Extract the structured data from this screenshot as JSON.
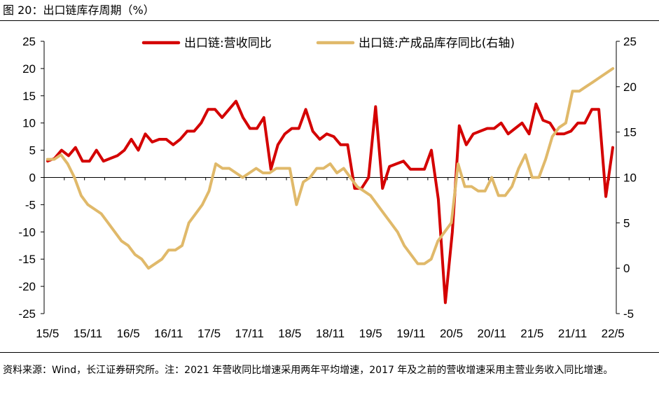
{
  "figure_title": "图 20：出口链库存周期（%）",
  "source_note": "资料来源：Wind，长江证券研究所。注：2021 年营收同比增速采用两年平均增速，2017 年及之前的营收增速采用主营业务收入同比增速。",
  "chart_data": {
    "type": "line",
    "x_tick_labels": [
      "15/5",
      "15/11",
      "16/5",
      "16/11",
      "17/5",
      "17/11",
      "18/5",
      "18/11",
      "19/5",
      "19/11",
      "20/5",
      "20/11",
      "21/5",
      "21/11",
      "22/5"
    ],
    "y_left": {
      "lim": [
        -25,
        25
      ],
      "ticks": [
        25,
        20,
        15,
        10,
        5,
        0,
        -5,
        -10,
        -15,
        -20,
        -25
      ]
    },
    "y_right": {
      "lim": [
        -5,
        25
      ],
      "ticks": [
        25,
        20,
        15,
        10,
        5,
        0,
        -5
      ]
    },
    "legend_placement": "top",
    "colors": {
      "revenue": "#d40000",
      "inventory": "#e0b96a"
    },
    "series": [
      {
        "name": "出口链:营收同比",
        "axis": "left",
        "values": [
          3.0,
          3.5,
          5.0,
          4.0,
          5.5,
          3.0,
          3.0,
          5.0,
          3.0,
          3.5,
          4.0,
          5.0,
          7.0,
          5.0,
          8.0,
          6.5,
          7.0,
          7.0,
          6.0,
          7.0,
          8.5,
          8.5,
          10.0,
          12.5,
          12.5,
          11.0,
          12.5,
          14.0,
          11.0,
          9.0,
          9.0,
          11.0,
          1.5,
          6.0,
          8.0,
          9.0,
          9.0,
          12.5,
          8.5,
          7.0,
          8.0,
          7.5,
          6.0,
          6.0,
          -2.0,
          -2.0,
          0.0,
          13.0,
          -2.0,
          2.0,
          2.5,
          3.0,
          1.5,
          1.5,
          1.5,
          5.0,
          -4.0,
          -23.0,
          -10.0,
          9.5,
          6.0,
          8.0,
          8.5,
          9.0,
          9.0,
          10.0,
          8.0,
          9.0,
          10.0,
          8.0,
          13.5,
          10.5,
          10.0,
          8.0,
          8.0,
          8.5,
          10.0,
          10.0,
          12.5,
          12.5,
          -3.5,
          5.5
        ]
      },
      {
        "name": "出口链:产成品库存同比(右轴)",
        "axis": "right",
        "values": [
          12.0,
          12.0,
          12.5,
          11.5,
          10.0,
          8.0,
          7.0,
          6.5,
          6.0,
          5.0,
          4.0,
          3.0,
          2.5,
          1.5,
          1.0,
          0.0,
          0.5,
          1.0,
          2.0,
          2.0,
          2.5,
          5.0,
          6.0,
          7.0,
          8.5,
          11.5,
          11.0,
          11.0,
          10.5,
          10.0,
          10.5,
          11.0,
          10.5,
          10.5,
          11.0,
          11.0,
          11.0,
          7.0,
          9.5,
          10.0,
          11.0,
          11.0,
          11.5,
          10.5,
          11.0,
          10.0,
          9.0,
          8.5,
          8.0,
          7.0,
          6.0,
          5.0,
          4.0,
          2.5,
          1.5,
          0.5,
          0.5,
          1.0,
          3.0,
          4.0,
          5.0,
          11.5,
          9.0,
          9.0,
          8.5,
          8.5,
          10.0,
          8.0,
          8.0,
          9.0,
          11.0,
          12.5,
          10.0,
          10.0,
          12.0,
          14.5,
          15.5,
          16.0,
          19.5,
          19.5,
          20.0,
          20.5,
          21.0,
          21.5,
          22.0
        ]
      }
    ]
  }
}
